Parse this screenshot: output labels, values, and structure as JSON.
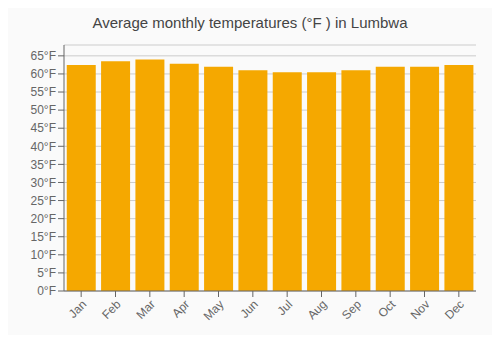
{
  "chart_data": {
    "type": "bar",
    "title": "Average monthly temperatures (°F ) in Lumbwa",
    "categories": [
      "Jan",
      "Feb",
      "Mar",
      "Apr",
      "May",
      "Jun",
      "Jul",
      "Aug",
      "Sep",
      "Oct",
      "Nov",
      "Dec"
    ],
    "values": [
      62.5,
      63.5,
      64.0,
      62.8,
      62.0,
      61.0,
      60.5,
      60.5,
      61.0,
      62.0,
      62.0,
      62.5
    ],
    "color": "#F5A800",
    "ylim": [
      0,
      68
    ],
    "yticks": [
      {
        "value": 0,
        "label": "0°F"
      },
      {
        "value": 5,
        "label": "5°F"
      },
      {
        "value": 10,
        "label": "10°F"
      },
      {
        "value": 15,
        "label": "15°F"
      },
      {
        "value": 20,
        "label": "20°F"
      },
      {
        "value": 25,
        "label": "25°F"
      },
      {
        "value": 30,
        "label": "30°F"
      },
      {
        "value": 35,
        "label": "35°F"
      },
      {
        "value": 40,
        "label": "40°F"
      },
      {
        "value": 45,
        "label": "45°F"
      },
      {
        "value": 50,
        "label": "50°F"
      },
      {
        "value": 55,
        "label": "55°F"
      },
      {
        "value": 60,
        "label": "60°F"
      },
      {
        "value": 65,
        "label": "65°F"
      }
    ],
    "grid": true
  }
}
